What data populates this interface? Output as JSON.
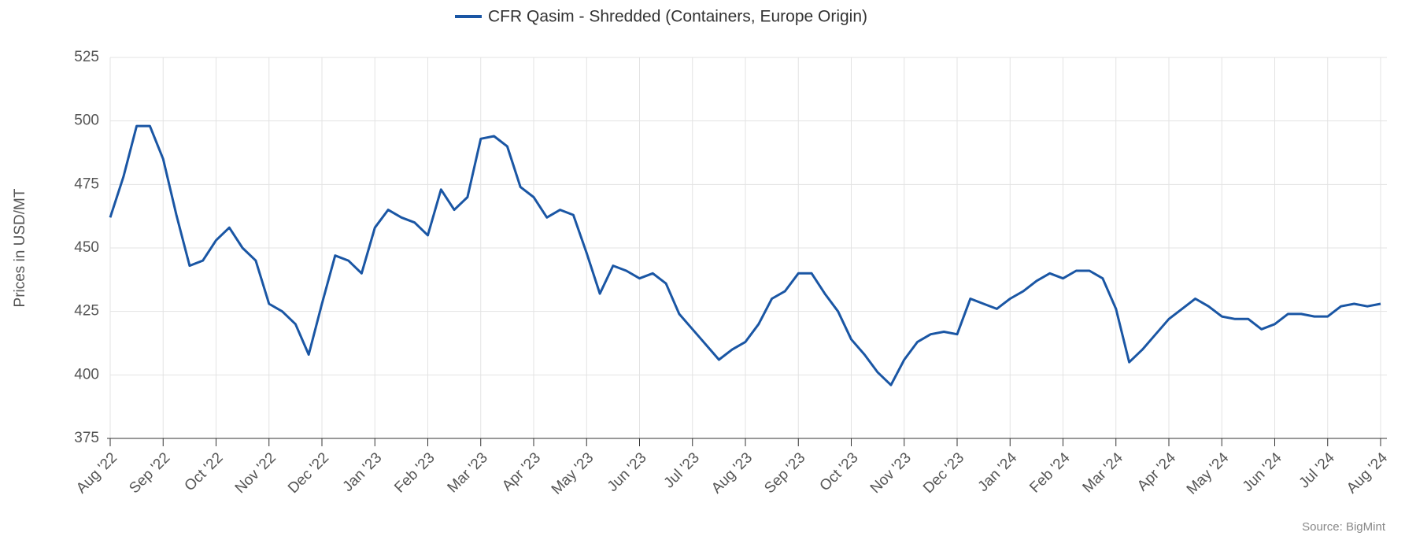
{
  "chart_data": {
    "type": "line",
    "y_label": "Prices in USD/MT",
    "source": "Source: BigMint",
    "categories": [
      "Aug '22",
      null,
      null,
      null,
      "Sep '22",
      null,
      null,
      null,
      "Oct '22",
      null,
      null,
      null,
      "Nov '22",
      null,
      null,
      null,
      "Dec '22",
      null,
      null,
      null,
      "Jan '23",
      null,
      null,
      null,
      "Feb '23",
      null,
      null,
      null,
      "Mar '23",
      null,
      null,
      null,
      "Apr '23",
      null,
      null,
      null,
      "May '23",
      null,
      null,
      null,
      "Jun '23",
      null,
      null,
      null,
      "Jul '23",
      null,
      null,
      null,
      "Aug '23",
      null,
      null,
      null,
      "Sep '23",
      null,
      null,
      null,
      "Oct '23",
      null,
      null,
      null,
      "Nov '23",
      null,
      null,
      null,
      "Dec '23",
      null,
      null,
      null,
      "Jan '24",
      null,
      null,
      null,
      "Feb '24",
      null,
      null,
      null,
      "Mar '24",
      null,
      null,
      null,
      "Apr '24",
      null,
      null,
      null,
      "May '24",
      null,
      null,
      null,
      "Jun '24",
      null,
      null,
      null,
      "Jul '24",
      null,
      null,
      null,
      "Aug '24"
    ],
    "series": [
      {
        "name": "CFR Qasim - Shredded (Containers, Europe Origin)",
        "color": "#1a56a4",
        "values": [
          462,
          478,
          498,
          498,
          485,
          463,
          443,
          445,
          453,
          458,
          450,
          445,
          428,
          425,
          420,
          408,
          428,
          447,
          445,
          440,
          458,
          465,
          462,
          460,
          455,
          473,
          465,
          470,
          493,
          494,
          490,
          474,
          470,
          462,
          465,
          463,
          448,
          432,
          443,
          441,
          438,
          440,
          436,
          424,
          418,
          412,
          406,
          410,
          413,
          420,
          430,
          433,
          440,
          440,
          432,
          425,
          414,
          408,
          401,
          396,
          406,
          413,
          416,
          417,
          416,
          430,
          428,
          426,
          430,
          433,
          437,
          440,
          438,
          441,
          441,
          438,
          426,
          405,
          410,
          416,
          422,
          426,
          430,
          427,
          423,
          422,
          422,
          418,
          420,
          424,
          424,
          423,
          423,
          427,
          428,
          427,
          428
        ]
      }
    ],
    "ylim": [
      375,
      525
    ],
    "yticks": [
      375,
      400,
      425,
      450,
      475,
      500,
      525
    ],
    "grid": true
  }
}
